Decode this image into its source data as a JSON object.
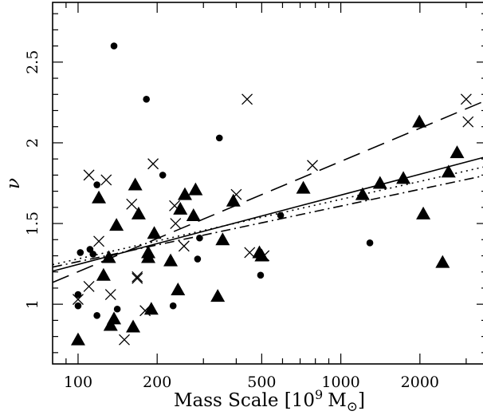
{
  "chart_data": {
    "type": "scatter",
    "title": "",
    "xlabel": "Mass Scale [10",
    "xlabel_exp": "9",
    "xlabel_unit": "M",
    "ylabel": "ν",
    "xscale": "log",
    "xlim": [
      80,
      3600
    ],
    "ylim": [
      0.63,
      2.87
    ],
    "xticks": [
      {
        "value": 100,
        "label": "100"
      },
      {
        "value": 200,
        "label": "200"
      },
      {
        "value": 500,
        "label": "500"
      },
      {
        "value": 1000,
        "label": "1000"
      },
      {
        "value": 2000,
        "label": "2000"
      }
    ],
    "yticks": [
      {
        "value": 1,
        "label": "1"
      },
      {
        "value": 1.5,
        "label": "1.5"
      },
      {
        "value": 2,
        "label": "2"
      },
      {
        "value": 2.5,
        "label": "2.5"
      }
    ],
    "grid": false,
    "series": [
      {
        "marker": "triangle",
        "points": [
          [
            100,
            0.78
          ],
          [
            133,
            0.87
          ],
          [
            137,
            0.91
          ],
          [
            140,
            1.49
          ],
          [
            125,
            1.18
          ],
          [
            131,
            1.29
          ],
          [
            120,
            1.66
          ],
          [
            162,
            0.86
          ],
          [
            165,
            1.74
          ],
          [
            170,
            1.56
          ],
          [
            185,
            1.32
          ],
          [
            185,
            1.29
          ],
          [
            190,
            0.97
          ],
          [
            195,
            1.44
          ],
          [
            225,
            1.27
          ],
          [
            240,
            1.09
          ],
          [
            245,
            1.59
          ],
          [
            255,
            1.68
          ],
          [
            275,
            1.55
          ],
          [
            280,
            1.71
          ],
          [
            340,
            1.05
          ],
          [
            355,
            1.4
          ],
          [
            390,
            1.64
          ],
          [
            490,
            1.32
          ],
          [
            500,
            1.3
          ],
          [
            720,
            1.72
          ],
          [
            1210,
            1.68
          ],
          [
            1410,
            1.75
          ],
          [
            1730,
            1.78
          ],
          [
            1990,
            2.13
          ],
          [
            2060,
            1.56
          ],
          [
            2440,
            1.26
          ],
          [
            2570,
            1.82
          ],
          [
            2770,
            1.94
          ]
        ]
      },
      {
        "marker": "circle",
        "points": [
          [
            100,
            1.06
          ],
          [
            100,
            0.99
          ],
          [
            102,
            1.32
          ],
          [
            111,
            1.34
          ],
          [
            114,
            1.31
          ],
          [
            118,
            1.74
          ],
          [
            118,
            0.93
          ],
          [
            137,
            2.6
          ],
          [
            141,
            0.97
          ],
          [
            182,
            2.27
          ],
          [
            210,
            1.8
          ],
          [
            230,
            0.99
          ],
          [
            285,
            1.28
          ],
          [
            290,
            1.41
          ],
          [
            345,
            2.03
          ],
          [
            495,
            1.18
          ],
          [
            590,
            1.55
          ],
          [
            1290,
            1.38
          ]
        ]
      },
      {
        "marker": "cross",
        "points": [
          [
            100,
            1.03
          ],
          [
            110,
            1.8
          ],
          [
            110,
            1.11
          ],
          [
            120,
            1.39
          ],
          [
            128,
            1.77
          ],
          [
            133,
            1.06
          ],
          [
            150,
            0.78
          ],
          [
            160,
            1.62
          ],
          [
            168,
            1.17
          ],
          [
            168,
            1.16
          ],
          [
            180,
            0.96
          ],
          [
            193,
            1.87
          ],
          [
            233,
            1.61
          ],
          [
            235,
            1.5
          ],
          [
            253,
            1.36
          ],
          [
            400,
            1.68
          ],
          [
            450,
            1.32
          ],
          [
            440,
            2.27
          ],
          [
            510,
            1.3
          ],
          [
            780,
            1.86
          ],
          [
            3000,
            2.27
          ],
          [
            3050,
            2.13
          ]
        ]
      }
    ],
    "fit_lines": [
      {
        "style": "solid",
        "points": [
          [
            80,
            1.205
          ],
          [
            3600,
            1.915
          ]
        ]
      },
      {
        "style": "long-dash",
        "points": [
          [
            80,
            1.135
          ],
          [
            3600,
            2.265
          ]
        ]
      },
      {
        "style": "dot",
        "points": [
          [
            80,
            1.245
          ],
          [
            3600,
            1.855
          ]
        ]
      },
      {
        "style": "dash-dot",
        "points": [
          [
            80,
            1.23
          ],
          [
            3600,
            1.8
          ]
        ]
      }
    ]
  }
}
